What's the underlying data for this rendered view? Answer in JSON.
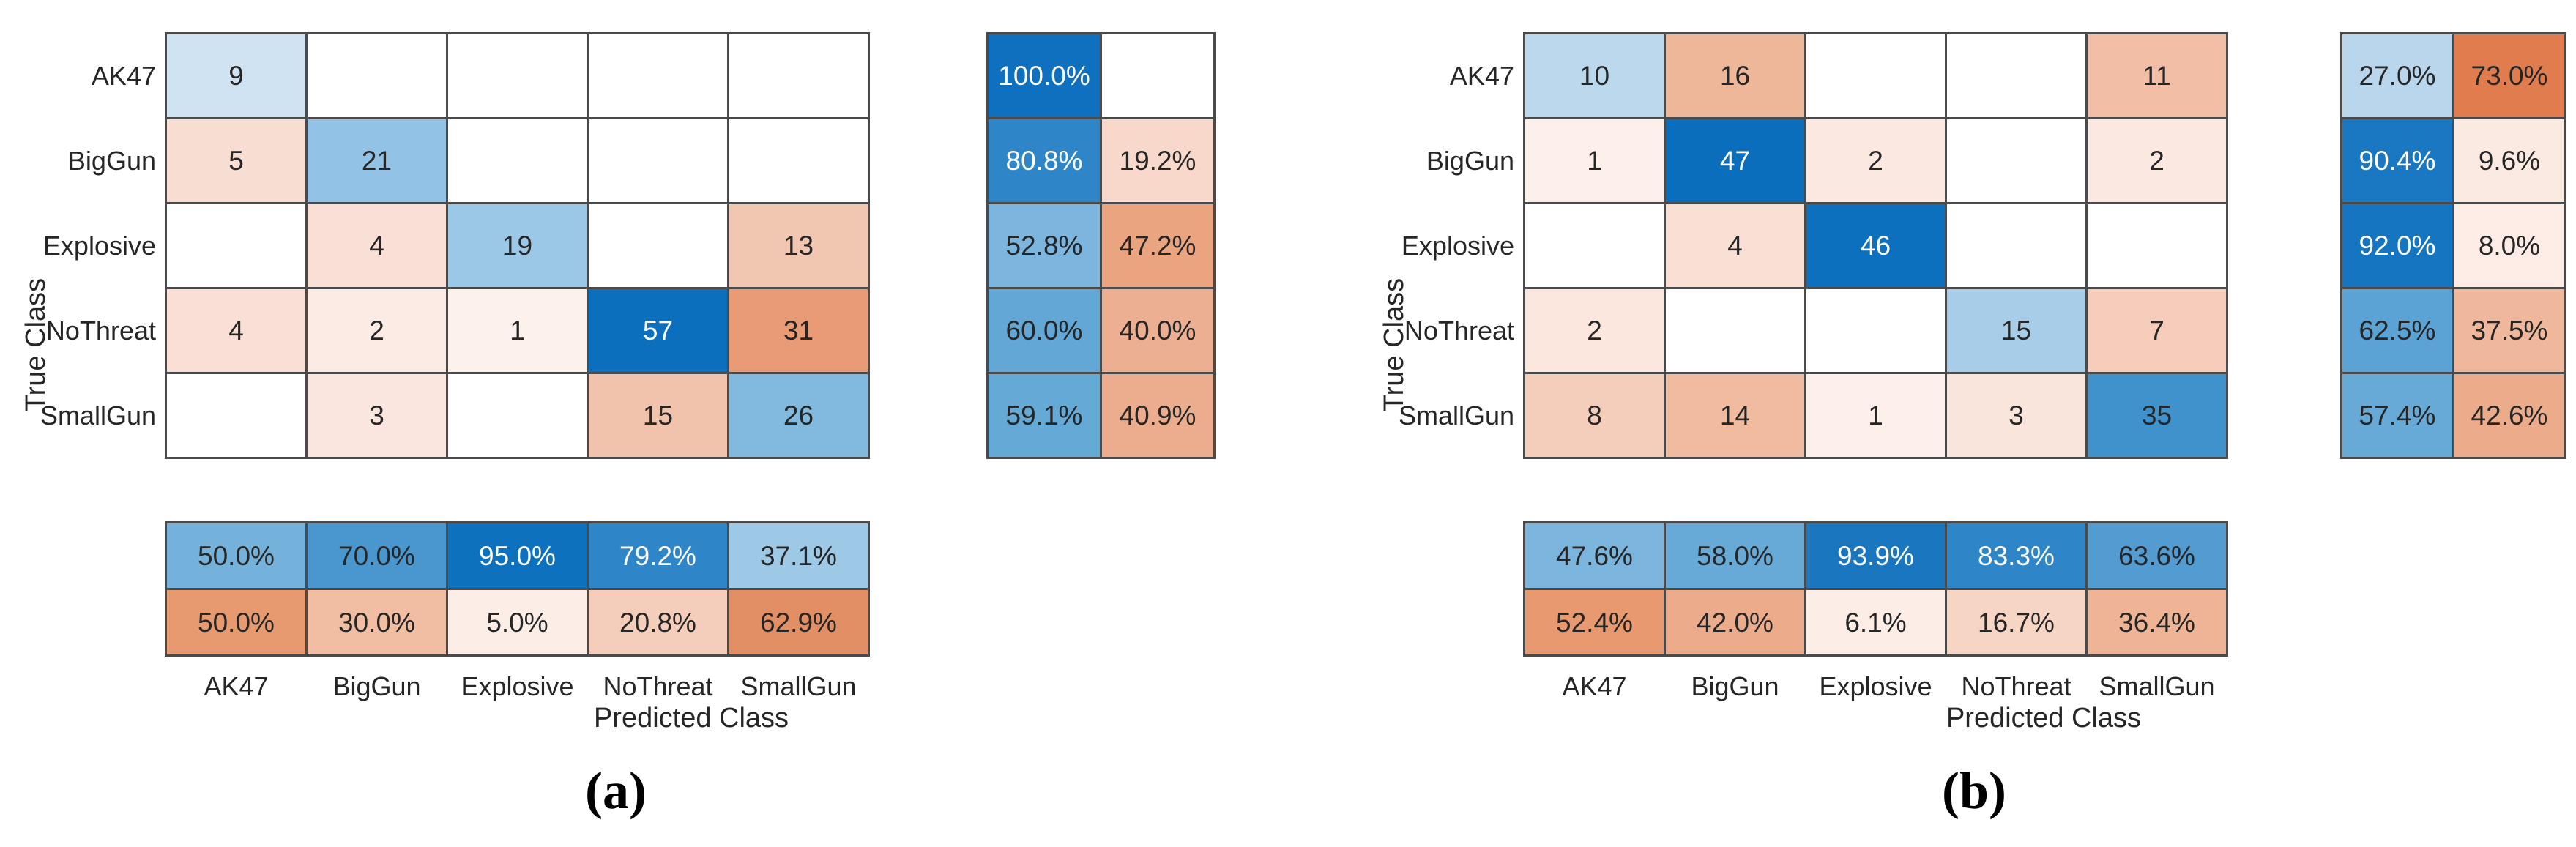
{
  "shared": {
    "classes": [
      "AK47",
      "BigGun",
      "Explosive",
      "NoThreat",
      "SmallGun"
    ],
    "xlabel": "Predicted Class",
    "ylabel": "True Class"
  },
  "colors": {
    "diagonal_base": "#0072BD",
    "offdiagonal_base": "#D95319",
    "grid_line": "#4A4A4A",
    "dark_text": "#262626",
    "light_text": "#FFFFFF",
    "background": "#FFFFFF"
  },
  "figures": [
    {
      "caption": "(a)",
      "matrix_cells": [
        [
          {
            "v": "9",
            "bg": "#CFE3F2"
          },
          null,
          null,
          null,
          null
        ],
        [
          {
            "v": "5",
            "bg": "#F8DDD2"
          },
          {
            "v": "21",
            "bg": "#92C2E5"
          },
          null,
          null,
          null
        ],
        [
          null,
          {
            "v": "4",
            "bg": "#F9DFD5"
          },
          {
            "v": "19",
            "bg": "#9CC8E7"
          },
          null,
          {
            "v": "13",
            "bg": "#F2C7B2"
          }
        ],
        [
          {
            "v": "4",
            "bg": "#F9DFD5"
          },
          {
            "v": "2",
            "bg": "#FBEBE4"
          },
          {
            "v": "1",
            "bg": "#FDF1EC"
          },
          {
            "v": "57",
            "bg": "#0B6FBD",
            "fg": "light"
          },
          {
            "v": "31",
            "bg": "#E89B75"
          }
        ],
        [
          null,
          {
            "v": "3",
            "bg": "#FAE6DE"
          },
          null,
          {
            "v": "15",
            "bg": "#F1C3AC"
          },
          {
            "v": "26",
            "bg": "#82BADF"
          }
        ]
      ],
      "row_summary_cells": [
        [
          {
            "v": "100.0%",
            "bg": "#0E70BE",
            "fg": "light"
          },
          null
        ],
        [
          {
            "v": "80.8%",
            "bg": "#2E86C8",
            "fg": "light"
          },
          {
            "v": "19.2%",
            "bg": "#F7D8CB"
          }
        ],
        [
          {
            "v": "52.8%",
            "bg": "#7CB5DD"
          },
          {
            "v": "47.2%",
            "bg": "#EAA47F"
          }
        ],
        [
          {
            "v": "60.0%",
            "bg": "#62A7D6"
          },
          {
            "v": "40.0%",
            "bg": "#EDAF92"
          }
        ],
        [
          {
            "v": "59.1%",
            "bg": "#65A9D7"
          },
          {
            "v": "40.9%",
            "bg": "#ECAD8F"
          }
        ]
      ],
      "col_summary_cells": [
        [
          {
            "v": "50.0%",
            "bg": "#74B1DB"
          },
          {
            "v": "70.0%",
            "bg": "#4A97D0"
          },
          {
            "v": "95.0%",
            "bg": "#0D71BE",
            "fg": "light"
          },
          {
            "v": "79.2%",
            "bg": "#2E86C8",
            "fg": "light"
          },
          {
            "v": "37.1%",
            "bg": "#9DC9E7"
          }
        ],
        [
          {
            "v": "50.0%",
            "bg": "#E79970"
          },
          {
            "v": "30.0%",
            "bg": "#F1BEA3"
          },
          {
            "v": "5.0%",
            "bg": "#FCEEE7"
          },
          {
            "v": "20.8%",
            "bg": "#F5CDBB"
          },
          {
            "v": "62.9%",
            "bg": "#E38F66"
          }
        ]
      ]
    },
    {
      "caption": "(b)",
      "matrix_cells": [
        [
          {
            "v": "10",
            "bg": "#BCD8ED"
          },
          {
            "v": "16",
            "bg": "#EFB79A"
          },
          null,
          null,
          {
            "v": "11",
            "bg": "#F2BFA6"
          }
        ],
        [
          {
            "v": "1",
            "bg": "#FDF0EB"
          },
          {
            "v": "47",
            "bg": "#0A6EBD",
            "fg": "light"
          },
          {
            "v": "2",
            "bg": "#FBE9E1"
          },
          null,
          {
            "v": "2",
            "bg": "#FBE9E1"
          }
        ],
        [
          null,
          {
            "v": "4",
            "bg": "#F9DFD4"
          },
          {
            "v": "46",
            "bg": "#0D70BE",
            "fg": "light"
          },
          null,
          null
        ],
        [
          {
            "v": "2",
            "bg": "#FBE7DE"
          },
          null,
          null,
          {
            "v": "15",
            "bg": "#A8CDE9"
          },
          {
            "v": "7",
            "bg": "#F5CDBA"
          }
        ],
        [
          {
            "v": "8",
            "bg": "#F4CDBB"
          },
          {
            "v": "14",
            "bg": "#F0BB9F"
          },
          {
            "v": "1",
            "bg": "#FDF0EB"
          },
          {
            "v": "3",
            "bg": "#FAE5DC"
          },
          {
            "v": "35",
            "bg": "#4092CD"
          }
        ]
      ],
      "row_summary_cells": [
        [
          {
            "v": "27.0%",
            "bg": "#B9D6EC"
          },
          {
            "v": "73.0%",
            "bg": "#E07C4E"
          }
        ],
        [
          {
            "v": "90.4%",
            "bg": "#1A77C1",
            "fg": "light"
          },
          {
            "v": "9.6%",
            "bg": "#FBEAE2"
          }
        ],
        [
          {
            "v": "92.0%",
            "bg": "#1575C0",
            "fg": "light"
          },
          {
            "v": "8.0%",
            "bg": "#FCECE5"
          }
        ],
        [
          {
            "v": "62.5%",
            "bg": "#5BA3D4"
          },
          {
            "v": "37.5%",
            "bg": "#EFB79B"
          }
        ],
        [
          {
            "v": "57.4%",
            "bg": "#68AAD7"
          },
          {
            "v": "42.6%",
            "bg": "#ECAC8C"
          }
        ]
      ],
      "col_summary_cells": [
        [
          {
            "v": "47.6%",
            "bg": "#7BB4DC"
          },
          {
            "v": "58.0%",
            "bg": "#67A9D7"
          },
          {
            "v": "93.9%",
            "bg": "#1B76C0",
            "fg": "light"
          },
          {
            "v": "83.3%",
            "bg": "#2E85C7",
            "fg": "light"
          },
          {
            "v": "63.6%",
            "bg": "#529CD2"
          }
        ],
        [
          {
            "v": "52.4%",
            "bg": "#E8996F"
          },
          {
            "v": "42.0%",
            "bg": "#ECAB8A"
          },
          {
            "v": "6.1%",
            "bg": "#FCEDE6"
          },
          {
            "v": "16.7%",
            "bg": "#F7D5C5"
          },
          {
            "v": "36.4%",
            "bg": "#EFB496"
          }
        ]
      ]
    }
  ],
  "chart_data": [
    {
      "type": "heatmap",
      "title": "(a)",
      "subtype": "confusion-matrix",
      "classes": [
        "AK47",
        "BigGun",
        "Explosive",
        "NoThreat",
        "SmallGun"
      ],
      "xlabel": "Predicted Class",
      "ylabel": "True Class",
      "matrix": [
        [
          9,
          0,
          0,
          0,
          0
        ],
        [
          5,
          21,
          0,
          0,
          0
        ],
        [
          0,
          4,
          19,
          0,
          13
        ],
        [
          4,
          2,
          1,
          57,
          31
        ],
        [
          0,
          3,
          0,
          15,
          26
        ]
      ],
      "row_summary_pct": [
        [
          100.0,
          null
        ],
        [
          80.8,
          19.2
        ],
        [
          52.8,
          47.2
        ],
        [
          60.0,
          40.0
        ],
        [
          59.1,
          40.9
        ]
      ],
      "col_summary_pct": [
        [
          50.0,
          70.0,
          95.0,
          79.2,
          37.1
        ],
        [
          50.0,
          30.0,
          5.0,
          20.8,
          62.9
        ]
      ],
      "legend_position": "none",
      "grid": true
    },
    {
      "type": "heatmap",
      "title": "(b)",
      "subtype": "confusion-matrix",
      "classes": [
        "AK47",
        "BigGun",
        "Explosive",
        "NoThreat",
        "SmallGun"
      ],
      "xlabel": "Predicted Class",
      "ylabel": "True Class",
      "matrix": [
        [
          10,
          16,
          0,
          0,
          11
        ],
        [
          1,
          47,
          2,
          0,
          2
        ],
        [
          0,
          4,
          46,
          0,
          0
        ],
        [
          2,
          0,
          0,
          15,
          7
        ],
        [
          8,
          14,
          1,
          3,
          35
        ]
      ],
      "row_summary_pct": [
        [
          27.0,
          73.0
        ],
        [
          90.4,
          9.6
        ],
        [
          92.0,
          8.0
        ],
        [
          62.5,
          37.5
        ],
        [
          57.4,
          42.6
        ]
      ],
      "col_summary_pct": [
        [
          47.6,
          58.0,
          93.9,
          83.3,
          63.6
        ],
        [
          52.4,
          42.0,
          6.1,
          16.7,
          36.4
        ]
      ],
      "legend_position": "none",
      "grid": true
    }
  ]
}
